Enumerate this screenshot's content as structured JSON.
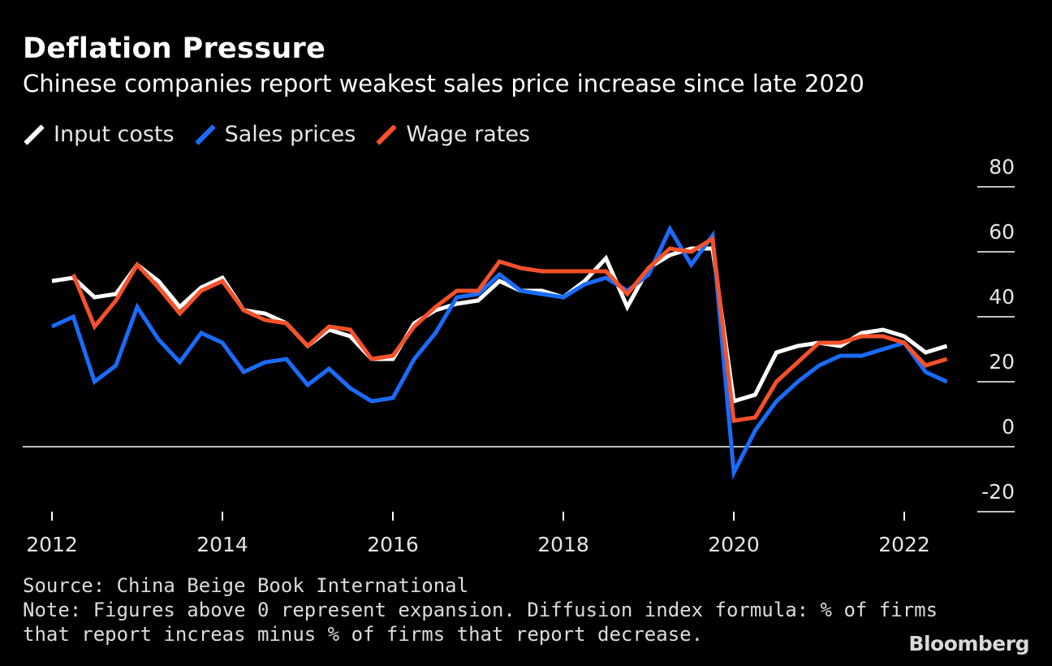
{
  "header": {
    "title": "Deflation Pressure",
    "subtitle": "Chinese companies report weakest sales price increase since late 2020"
  },
  "footer": {
    "source": "Source: China Beige Book International",
    "note_line1": "Note: Figures above 0 represent expansion. Diffusion index formula: % of firms",
    "note_line2": "that report increas minus % of firms that report decrease."
  },
  "brand": "Bloomberg",
  "chart_data": {
    "type": "line",
    "title": "Deflation Pressure",
    "subtitle": "Chinese companies report weakest sales price increase since late 2020",
    "xlabel": "",
    "ylabel": "",
    "ylim": [
      -20,
      80
    ],
    "yticks": [
      -20,
      0,
      20,
      40,
      60,
      80
    ],
    "xticks": [
      2012,
      2014,
      2016,
      2018,
      2020,
      2022
    ],
    "x": [
      2012.0,
      2012.25,
      2012.5,
      2012.75,
      2013.0,
      2013.25,
      2013.5,
      2013.75,
      2014.0,
      2014.25,
      2014.5,
      2014.75,
      2015.0,
      2015.25,
      2015.5,
      2015.75,
      2016.0,
      2016.25,
      2016.5,
      2016.75,
      2017.0,
      2017.25,
      2017.5,
      2017.75,
      2018.0,
      2018.25,
      2018.5,
      2018.75,
      2019.0,
      2019.25,
      2019.5,
      2019.75,
      2020.0,
      2020.25,
      2020.5,
      2020.75,
      2021.0,
      2021.25,
      2021.5,
      2021.75,
      2022.0,
      2022.25,
      2022.5,
      2022.75
    ],
    "legend": [
      "Input costs",
      "Sales prices",
      "Wage rates"
    ],
    "legend_position": "top-left",
    "colors": {
      "input": "#ffffff",
      "sales": "#1a6cff",
      "wage": "#f5512a",
      "axis": "#ffffff",
      "tick_label": "#e6e6e6"
    },
    "series": [
      {
        "name": "Input costs",
        "color": "#ffffff",
        "values": [
          51,
          52,
          46,
          47,
          56,
          51,
          43,
          49,
          52,
          42,
          41,
          38,
          31,
          36,
          34,
          27,
          27,
          38,
          42,
          44,
          45,
          51,
          48,
          48,
          46,
          51,
          58,
          43,
          55,
          59,
          61,
          61,
          14,
          16,
          29,
          31,
          32,
          31,
          35,
          36,
          34,
          29,
          31,
          null
        ]
      },
      {
        "name": "Sales prices",
        "color": "#1a6cff",
        "values": [
          37,
          40,
          20,
          25,
          43,
          33,
          26,
          35,
          32,
          23,
          26,
          27,
          19,
          24,
          18,
          14,
          15,
          27,
          35,
          46,
          47,
          53,
          48,
          47,
          46,
          50,
          52,
          48,
          53,
          67,
          56,
          65,
          -8,
          5,
          14,
          20,
          25,
          28,
          28,
          30,
          32,
          23,
          20,
          null
        ]
      },
      {
        "name": "Wage rates",
        "color": "#f5512a",
        "values": [
          null,
          53,
          37,
          45,
          56,
          49,
          41,
          48,
          51,
          42,
          39,
          38,
          31,
          37,
          36,
          27,
          28,
          37,
          43,
          48,
          48,
          57,
          55,
          54,
          54,
          54,
          54,
          47,
          55,
          61,
          60,
          64,
          8,
          9,
          20,
          26,
          32,
          32,
          34,
          34,
          32,
          25,
          27,
          null
        ]
      }
    ]
  }
}
